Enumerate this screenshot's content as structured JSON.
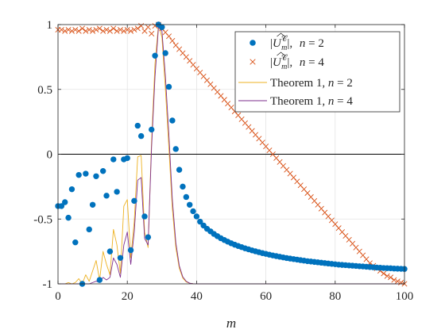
{
  "chart_data": {
    "type": "line",
    "xlabel": "m",
    "xlim": [
      0,
      100
    ],
    "ylim": [
      -1,
      1
    ],
    "xticks": [
      "0",
      "20",
      "40",
      "60",
      "80",
      "100"
    ],
    "yticks": [
      "1",
      "0.5",
      "0",
      "-0.5",
      "-1"
    ],
    "grid": true,
    "zero_line": true,
    "legend_position": "top-right",
    "series": [
      {
        "name": "|Û_m^C|,  n = 2",
        "legend_label": {
          "prefix": "|",
          "symbol": "U",
          "sup": "𝒞",
          "sub": "m",
          "suffix": "|,  ",
          "n_var": "n",
          "n_eq": " = 2"
        },
        "marker": "circle",
        "color": "#0072BD",
        "x": [
          0,
          1,
          2,
          3,
          4,
          5,
          6,
          7,
          8,
          9,
          10,
          11,
          12,
          13,
          14,
          15,
          16,
          17,
          18,
          19,
          20,
          21,
          22,
          23,
          24,
          25,
          26,
          27,
          28,
          29,
          30,
          31,
          32,
          33,
          34,
          35,
          36,
          37,
          38,
          39,
          40,
          41,
          42,
          43,
          44,
          45,
          46,
          47,
          48,
          49,
          50,
          51,
          52,
          53,
          54,
          55,
          56,
          57,
          58,
          59,
          60,
          61,
          62,
          63,
          64,
          65,
          66,
          67,
          68,
          69,
          70,
          71,
          72,
          73,
          74,
          75,
          76,
          77,
          78,
          79,
          80,
          81,
          82,
          83,
          84,
          85,
          86,
          87,
          88,
          89,
          90,
          91,
          92,
          93,
          94,
          95,
          96,
          97,
          98,
          99,
          100
        ],
        "y": [
          -0.4,
          -0.4,
          -0.37,
          -0.49,
          -0.27,
          -0.68,
          -0.16,
          -1.0,
          -0.15,
          -0.58,
          -0.39,
          -0.17,
          -0.97,
          -0.13,
          -0.32,
          -0.75,
          -0.04,
          -0.29,
          -0.8,
          -0.04,
          -0.03,
          -0.74,
          -0.36,
          0.22,
          0.14,
          -0.48,
          -0.64,
          0.19,
          0.76,
          1.0,
          0.98,
          0.78,
          0.52,
          0.26,
          0.04,
          -0.12,
          -0.25,
          -0.33,
          -0.39,
          -0.44,
          -0.48,
          -0.52,
          -0.55,
          -0.575,
          -0.595,
          -0.615,
          -0.632,
          -0.648,
          -0.662,
          -0.675,
          -0.687,
          -0.698,
          -0.708,
          -0.717,
          -0.726,
          -0.734,
          -0.742,
          -0.749,
          -0.756,
          -0.763,
          -0.769,
          -0.775,
          -0.781,
          -0.786,
          -0.791,
          -0.796,
          -0.801,
          -0.805,
          -0.809,
          -0.813,
          -0.817,
          -0.821,
          -0.825,
          -0.828,
          -0.831,
          -0.834,
          -0.837,
          -0.84,
          -0.843,
          -0.846,
          -0.849,
          -0.852,
          -0.854,
          -0.856,
          -0.858,
          -0.86,
          -0.862,
          -0.864,
          -0.866,
          -0.868,
          -0.87,
          -0.872,
          -0.874,
          -0.876,
          -0.878,
          -0.879,
          -0.88,
          -0.882,
          -0.883,
          -0.884,
          -0.885
        ]
      },
      {
        "name": "|Û_m^C|,  n = 4",
        "legend_label": {
          "prefix": "|",
          "symbol": "U",
          "sup": "𝒞",
          "sub": "m",
          "suffix": "|,  ",
          "n_var": "n",
          "n_eq": " = 4"
        },
        "marker": "x",
        "color": "#D95319",
        "x": [
          0,
          1,
          2,
          3,
          4,
          5,
          6,
          7,
          8,
          9,
          10,
          11,
          12,
          13,
          14,
          15,
          16,
          17,
          18,
          19,
          20,
          21,
          22,
          23,
          24,
          25,
          26,
          27,
          28,
          29,
          30,
          31,
          32,
          33,
          34,
          35,
          36,
          37,
          38,
          39,
          40,
          41,
          42,
          43,
          44,
          45,
          46,
          47,
          48,
          49,
          50,
          51,
          52,
          53,
          54,
          55,
          56,
          57,
          58,
          59,
          60,
          61,
          62,
          63,
          64,
          65,
          66,
          67,
          68,
          69,
          70,
          71,
          72,
          73,
          74,
          75,
          76,
          77,
          78,
          79,
          80,
          81,
          82,
          83,
          84,
          85,
          86,
          87,
          88,
          89,
          90,
          91,
          92,
          93,
          94,
          95,
          96,
          97,
          98,
          99,
          100
        ],
        "y": [
          0.96,
          0.96,
          0.95,
          0.96,
          0.95,
          0.96,
          0.95,
          0.97,
          0.95,
          0.96,
          0.95,
          0.96,
          0.97,
          0.95,
          0.96,
          0.95,
          0.97,
          0.95,
          0.96,
          0.95,
          0.96,
          0.95,
          0.96,
          0.97,
          0.99,
          0.95,
          0.98,
          0.93,
          0.99,
          1.0,
          0.97,
          0.94,
          0.91,
          0.875,
          0.84,
          0.81,
          0.78,
          0.75,
          0.72,
          0.69,
          0.66,
          0.63,
          0.6,
          0.57,
          0.54,
          0.51,
          0.48,
          0.45,
          0.42,
          0.39,
          0.36,
          0.33,
          0.3,
          0.27,
          0.24,
          0.21,
          0.18,
          0.15,
          0.12,
          0.09,
          0.06,
          0.03,
          0.0,
          -0.03,
          -0.06,
          -0.09,
          -0.12,
          -0.15,
          -0.18,
          -0.21,
          -0.24,
          -0.27,
          -0.3,
          -0.33,
          -0.36,
          -0.39,
          -0.42,
          -0.45,
          -0.48,
          -0.51,
          -0.54,
          -0.57,
          -0.6,
          -0.63,
          -0.66,
          -0.69,
          -0.72,
          -0.75,
          -0.78,
          -0.81,
          -0.84,
          -0.86,
          -0.88,
          -0.9,
          -0.92,
          -0.94,
          -0.95,
          -0.97,
          -0.98,
          -0.99,
          -1.0
        ]
      },
      {
        "name": "Theorem 1, n = 2",
        "legend_label": {
          "prefix": "Theorem 1, ",
          "n_var": "n",
          "n_eq": " = 2"
        },
        "marker": "line",
        "color": "#EDB120",
        "x": [
          0,
          1,
          2,
          3,
          4,
          5,
          6,
          7,
          8,
          9,
          10,
          11,
          12,
          13,
          14,
          15,
          16,
          17,
          18,
          19,
          20,
          21,
          22,
          23,
          24,
          25,
          26,
          27,
          28,
          29,
          30,
          31,
          32,
          33,
          34,
          35,
          36,
          37,
          38,
          39,
          40,
          41,
          42,
          43,
          44,
          45,
          46,
          47,
          48,
          49,
          50,
          60,
          70,
          80,
          90,
          100
        ],
        "y": [
          -1.0,
          -1.0,
          -1.0,
          -0.99,
          -1.0,
          -0.99,
          -0.96,
          -1.0,
          -0.93,
          -0.98,
          -0.9,
          -0.82,
          -0.97,
          -0.75,
          -0.85,
          -0.93,
          -0.58,
          -0.7,
          -0.92,
          -0.4,
          -0.35,
          -0.8,
          -0.52,
          -0.02,
          -0.01,
          -0.6,
          -0.72,
          0.1,
          0.7,
          1.0,
          0.9,
          0.5,
          0.05,
          -0.42,
          -0.72,
          -0.88,
          -0.955,
          -0.985,
          -0.995,
          -0.999,
          -1.0,
          -1.0,
          -1.0,
          -1.0,
          -1.0,
          -1.0,
          -1.0,
          -1.0,
          -1.0,
          -1.0,
          -1.0,
          -1.0,
          -1.0,
          -1.0,
          -1.0,
          -1.0
        ]
      },
      {
        "name": "Theorem 1, n = 4",
        "legend_label": {
          "prefix": "Theorem 1, ",
          "n_var": "n",
          "n_eq": " = 4"
        },
        "marker": "line",
        "color": "#7E2F8E",
        "x": [
          0,
          1,
          2,
          3,
          4,
          5,
          6,
          7,
          8,
          9,
          10,
          11,
          12,
          13,
          14,
          15,
          16,
          17,
          18,
          19,
          20,
          21,
          22,
          23,
          24,
          25,
          26,
          27,
          28,
          29,
          30,
          31,
          32,
          33,
          34,
          35,
          36,
          37,
          38,
          39,
          40,
          41,
          42,
          43,
          44,
          45,
          46,
          47,
          48,
          49,
          50,
          60,
          70,
          80,
          90,
          100
        ],
        "y": [
          -1.0,
          -1.0,
          -1.0,
          -1.0,
          -1.0,
          -1.0,
          -1.0,
          -1.0,
          -1.0,
          -1.0,
          -0.99,
          -0.98,
          -0.99,
          -0.95,
          -0.97,
          -0.95,
          -0.8,
          -0.85,
          -0.95,
          -0.7,
          -0.6,
          -0.85,
          -0.6,
          -0.2,
          -0.18,
          -0.65,
          -0.7,
          0.05,
          0.6,
          0.98,
          0.95,
          0.6,
          0.15,
          -0.35,
          -0.68,
          -0.86,
          -0.945,
          -0.98,
          -0.995,
          -0.999,
          -1.0,
          -1.0,
          -1.0,
          -1.0,
          -1.0,
          -1.0,
          -1.0,
          -1.0,
          -1.0,
          -1.0,
          -1.0,
          -1.0,
          -1.0,
          -1.0,
          -1.0,
          -1.0
        ]
      }
    ]
  }
}
